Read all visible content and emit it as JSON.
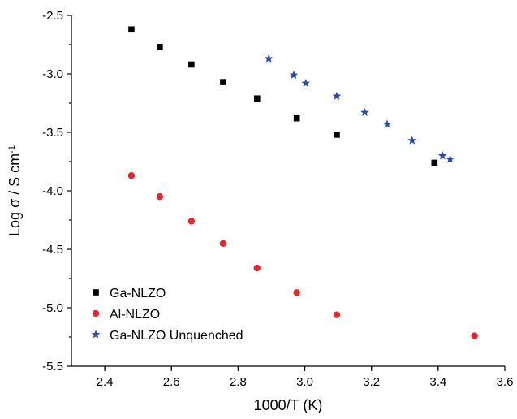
{
  "chart_data": {
    "type": "scatter",
    "title": "",
    "xlabel": "1000/T (K)",
    "ylabel_main": "Log σ / S cm",
    "ylabel_sup": "-1",
    "xlim": [
      2.3,
      3.6
    ],
    "ylim": [
      -5.5,
      -2.5
    ],
    "xticks": [
      "2.4",
      "2.6",
      "2.8",
      "3.0",
      "3.2",
      "3.4",
      "3.6"
    ],
    "xtick_values": [
      2.4,
      2.6,
      2.8,
      3.0,
      3.2,
      3.4,
      3.6
    ],
    "yticks": [
      "-2.5",
      "-3.0",
      "-3.5",
      "-4.0",
      "-4.5",
      "-5.0",
      "-5.5"
    ],
    "ytick_values": [
      -2.5,
      -3.0,
      -3.5,
      -4.0,
      -4.5,
      -5.0,
      -5.5
    ],
    "grid": false,
    "legend_position": "bottom-left",
    "series": [
      {
        "name": "Ga-NLZO",
        "marker": "square",
        "color": "#000000",
        "x": [
          2.48,
          2.565,
          2.66,
          2.755,
          2.857,
          2.976,
          3.096,
          3.389
        ],
        "y": [
          -2.62,
          -2.77,
          -2.92,
          -3.07,
          -3.21,
          -3.38,
          -3.52,
          -3.76
        ]
      },
      {
        "name": "Al-NLZO",
        "marker": "circle",
        "color": "#e8262c",
        "x": [
          2.48,
          2.565,
          2.66,
          2.755,
          2.857,
          2.976,
          3.096,
          3.509
        ],
        "y": [
          -3.87,
          -4.05,
          -4.26,
          -4.45,
          -4.66,
          -4.87,
          -5.06,
          -5.24
        ]
      },
      {
        "name": "Ga-NLZO Unquenched",
        "marker": "star",
        "color": "#2b4aa6",
        "x": [
          2.892,
          2.967,
          3.003,
          3.096,
          3.18,
          3.247,
          3.322,
          3.413,
          3.436
        ],
        "y": [
          -2.87,
          -3.01,
          -3.08,
          -3.19,
          -3.33,
          -3.43,
          -3.57,
          -3.7,
          -3.73
        ]
      }
    ]
  }
}
